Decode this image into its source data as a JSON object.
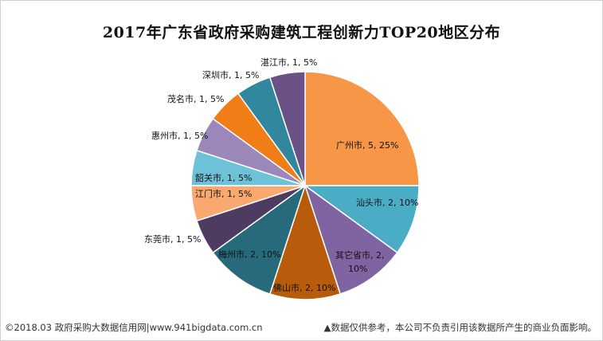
{
  "chart_data": {
    "type": "pie",
    "title": "2017年广东省政府采购建筑工程创新力TOP20地区分布",
    "slices": [
      {
        "name": "广州市",
        "value": 5,
        "percent": "25%",
        "color": "#F79646"
      },
      {
        "name": "汕头市",
        "value": 2,
        "percent": "10%",
        "color": "#4BACC6"
      },
      {
        "name": "其它省市",
        "value": 2,
        "percent": "10%",
        "color": "#8064A2"
      },
      {
        "name": "佛山市",
        "value": 2,
        "percent": "10%",
        "color": "#B85C0B"
      },
      {
        "name": "梅州市",
        "value": 2,
        "percent": "10%",
        "color": "#276A7C"
      },
      {
        "name": "东莞市",
        "value": 1,
        "percent": "5%",
        "color": "#4E3B62"
      },
      {
        "name": "江门市",
        "value": 1,
        "percent": "5%",
        "color": "#F9A870"
      },
      {
        "name": "韶关市",
        "value": 1,
        "percent": "5%",
        "color": "#6DC2D8"
      },
      {
        "name": "惠州市",
        "value": 1,
        "percent": "5%",
        "color": "#9B87BA"
      },
      {
        "name": "茂名市",
        "value": 1,
        "percent": "5%",
        "color": "#F07D16"
      },
      {
        "name": "深圳市",
        "value": 1,
        "percent": "5%",
        "color": "#31879E"
      },
      {
        "name": "湛江市",
        "value": 1,
        "percent": "5%",
        "color": "#6A5286"
      }
    ],
    "labels": [
      "广州市, 5, 25%",
      "汕头市, 2, 10%",
      "其它省市, 2,",
      "10%",
      "佛山市, 2, 10%",
      "梅州市, 2, 10%",
      "东莞市, 1, 5%",
      "江门市, 1, 5%",
      "韶关市, 1, 5%",
      "惠州市, 1, 5%",
      "茂名市, 1, 5%",
      "深圳市, 1, 5%",
      "湛江市, 1, 5%"
    ]
  },
  "footer": {
    "source": "©2018.03 政府采购大数据信用网|www.941bigdata.com.cn",
    "disclaimer": "▲数据仅供参考，本公司不负责引用该数据所产生的商业负面影响。"
  }
}
